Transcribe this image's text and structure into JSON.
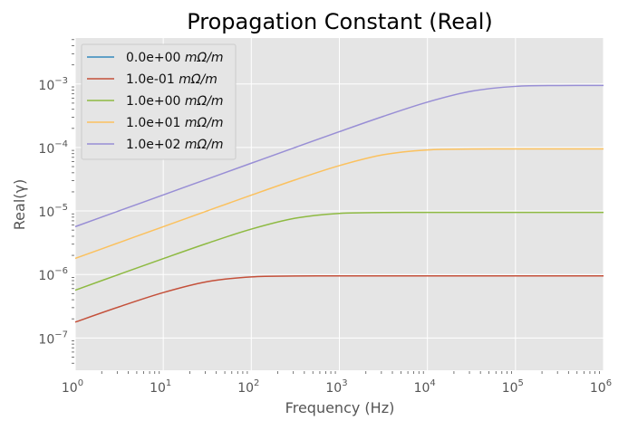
{
  "chart_data": {
    "type": "line",
    "title": "Propagation Constant (Real)",
    "xlabel": "Frequency (Hz)",
    "ylabel": "Real(γ)",
    "xscale": "log",
    "yscale": "log",
    "xlim": [
      1,
      1000000
    ],
    "ylim": [
      3.1e-08,
      0.0053
    ],
    "x_tick_exponents": [
      0,
      1,
      2,
      3,
      4,
      5,
      6
    ],
    "y_tick_exponents": [
      -7,
      -6,
      -5,
      -4,
      -3
    ],
    "grid": true,
    "legend_placement": "top-left",
    "background": "#E5E5E5",
    "x": [
      1,
      3.162,
      10,
      31.62,
      100,
      316.2,
      1000,
      3162,
      10000,
      31620,
      100000,
      316200,
      1000000
    ],
    "series": [
      {
        "name": "0.0e+00 mΩ/m",
        "color": "#348ABD",
        "values": [
          0,
          0,
          0,
          0,
          0,
          0,
          0,
          0,
          0,
          0,
          0,
          0,
          0
        ]
      },
      {
        "name": "1.0e-01 mΩ/m",
        "color": "#C4503A",
        "values": [
          1.776e-07,
          3.098e-07,
          5.186e-07,
          7.705e-07,
          9.169e-07,
          9.462e-07,
          9.496e-07,
          9.5e-07,
          9.5e-07,
          9.5e-07,
          9.5e-07,
          9.5e-07,
          9.5e-07
        ]
      },
      {
        "name": "1.0e+00 mΩ/m",
        "color": "#8EBA42",
        "values": [
          5.66e-07,
          1.005e-06,
          1.776e-06,
          3.098e-06,
          5.186e-06,
          7.705e-06,
          9.169e-06,
          9.462e-06,
          9.496e-06,
          9.5e-06,
          9.5e-06,
          9.5e-06,
          9.5e-06
        ]
      },
      {
        "name": "1.0e+01 mΩ/m",
        "color": "#FBC15E",
        "values": [
          1.791e-06,
          3.185e-06,
          5.66e-06,
          1.005e-05,
          1.776e-05,
          3.098e-05,
          5.186e-05,
          7.705e-05,
          9.169e-05,
          9.462e-05,
          9.496e-05,
          9.5e-05,
          9.5e-05
        ]
      },
      {
        "name": "1.0e+02 mΩ/m",
        "color": "#988ED5",
        "values": [
          5.666e-06,
          1.007e-05,
          1.791e-05,
          3.185e-05,
          5.66e-05,
          0.0001005,
          0.0001776,
          0.0003098,
          0.0005186,
          0.0007705,
          0.0009169,
          0.0009462,
          0.0009496
        ]
      }
    ]
  }
}
